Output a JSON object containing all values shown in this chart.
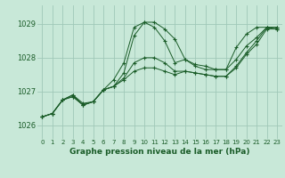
{
  "background_color": "#c8e8d8",
  "grid_color": "#a0c8b8",
  "line_color": "#1a5c28",
  "marker": "+",
  "title": "Graphe pression niveau de la mer (hPa)",
  "xlim": [
    -0.5,
    23.5
  ],
  "ylim": [
    1025.6,
    1029.55
  ],
  "yticks": [
    1026,
    1027,
    1028,
    1029
  ],
  "xticks": [
    0,
    1,
    2,
    3,
    4,
    5,
    6,
    7,
    8,
    9,
    10,
    11,
    12,
    13,
    14,
    15,
    16,
    17,
    18,
    19,
    20,
    21,
    22,
    23
  ],
  "series": [
    [
      1026.25,
      1026.35,
      1026.75,
      1026.9,
      1026.65,
      1026.7,
      1027.05,
      1027.35,
      1027.85,
      1028.9,
      1029.05,
      1029.05,
      1028.85,
      1028.55,
      1027.95,
      1027.8,
      1027.75,
      1027.65,
      1027.65,
      1028.3,
      1028.7,
      1028.9,
      1028.9,
      1028.9
    ],
    [
      1026.25,
      1026.35,
      1026.75,
      1026.9,
      1026.6,
      1026.7,
      1027.05,
      1027.15,
      1027.55,
      1028.65,
      1029.05,
      1028.9,
      1028.5,
      1027.85,
      1027.95,
      1027.75,
      1027.65,
      1027.65,
      1027.65,
      1027.95,
      1028.35,
      1028.6,
      1028.9,
      1028.9
    ],
    [
      1026.25,
      1026.35,
      1026.75,
      1026.85,
      1026.6,
      1026.7,
      1027.05,
      1027.15,
      1027.4,
      1027.85,
      1028.0,
      1028.0,
      1027.85,
      1027.6,
      1027.6,
      1027.55,
      1027.5,
      1027.45,
      1027.45,
      1027.75,
      1028.15,
      1028.5,
      1028.9,
      1028.85
    ],
    [
      1026.25,
      1026.35,
      1026.75,
      1026.85,
      1026.6,
      1026.7,
      1027.05,
      1027.15,
      1027.35,
      1027.6,
      1027.7,
      1027.7,
      1027.6,
      1027.5,
      1027.6,
      1027.55,
      1027.5,
      1027.45,
      1027.45,
      1027.7,
      1028.1,
      1028.4,
      1028.85,
      1028.85
    ]
  ]
}
